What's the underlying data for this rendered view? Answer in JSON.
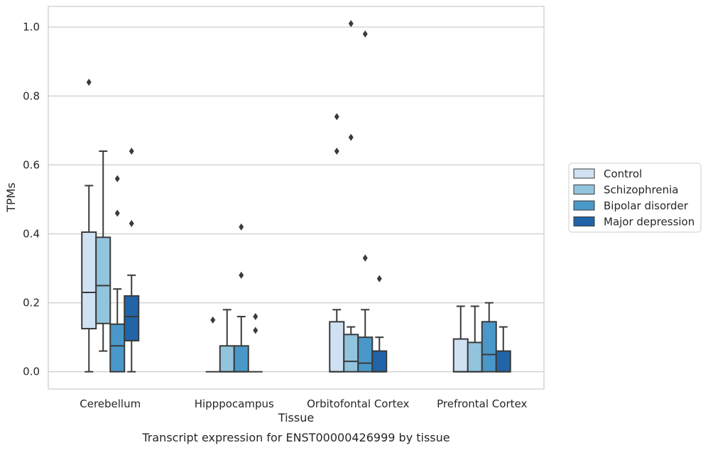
{
  "chart_data": {
    "type": "box",
    "title": "",
    "xlabel": "Tissue",
    "ylabel": "TPMs",
    "caption": "Transcript expression for ENST00000426999 by tissue",
    "ylim": [
      -0.05,
      1.06
    ],
    "yticks": [
      0.0,
      0.2,
      0.4,
      0.6,
      0.8,
      1.0
    ],
    "ytick_labels": [
      "0.0",
      "0.2",
      "0.4",
      "0.6",
      "0.8",
      "1.0"
    ],
    "grid": true,
    "legend_position": "right",
    "categories": [
      "Cerebellum",
      "Hipppocampus",
      "Orbitofontal Cortex",
      "Prefrontal Cortex"
    ],
    "series": [
      {
        "name": "Control",
        "color": "#cfe1f2",
        "boxes": [
          {
            "whislo": 0.0,
            "q1": 0.125,
            "med": 0.23,
            "q3": 0.405,
            "whishi": 0.54,
            "fliers": [
              0.84
            ]
          },
          {
            "whislo": 0.0,
            "q1": 0.0,
            "med": 0.0,
            "q3": 0.0,
            "whishi": 0.0,
            "fliers": [
              0.15
            ]
          },
          {
            "whislo": 0.0,
            "q1": 0.0,
            "med": 0.0,
            "q3": 0.145,
            "whishi": 0.18,
            "fliers": [
              0.64,
              0.74
            ]
          },
          {
            "whislo": 0.0,
            "q1": 0.0,
            "med": 0.0,
            "q3": 0.095,
            "whishi": 0.19,
            "fliers": []
          }
        ]
      },
      {
        "name": "Schizophrenia",
        "color": "#93c4de",
        "boxes": [
          {
            "whislo": 0.06,
            "q1": 0.14,
            "med": 0.25,
            "q3": 0.39,
            "whishi": 0.64,
            "fliers": []
          },
          {
            "whislo": 0.0,
            "q1": 0.0,
            "med": 0.0,
            "q3": 0.075,
            "whishi": 0.18,
            "fliers": []
          },
          {
            "whislo": 0.0,
            "q1": 0.0,
            "med": 0.03,
            "q3": 0.108,
            "whishi": 0.13,
            "fliers": [
              0.68,
              1.01
            ]
          },
          {
            "whislo": 0.0,
            "q1": 0.0,
            "med": 0.0,
            "q3": 0.085,
            "whishi": 0.19,
            "fliers": []
          }
        ]
      },
      {
        "name": "Bipolar disorder",
        "color": "#4a98c9",
        "boxes": [
          {
            "whislo": 0.0,
            "q1": 0.0,
            "med": 0.075,
            "q3": 0.138,
            "whishi": 0.24,
            "fliers": [
              0.46,
              0.56
            ]
          },
          {
            "whislo": 0.0,
            "q1": 0.0,
            "med": 0.0,
            "q3": 0.075,
            "whishi": 0.16,
            "fliers": [
              0.28,
              0.42
            ]
          },
          {
            "whislo": 0.0,
            "q1": 0.0,
            "med": 0.025,
            "q3": 0.1,
            "whishi": 0.18,
            "fliers": [
              0.33,
              0.98
            ]
          },
          {
            "whislo": 0.0,
            "q1": 0.0,
            "med": 0.05,
            "q3": 0.145,
            "whishi": 0.2,
            "fliers": []
          }
        ]
      },
      {
        "name": "Major depression",
        "color": "#2164a8",
        "boxes": [
          {
            "whislo": 0.0,
            "q1": 0.09,
            "med": 0.16,
            "q3": 0.22,
            "whishi": 0.28,
            "fliers": [
              0.43,
              0.64
            ]
          },
          {
            "whislo": 0.0,
            "q1": 0.0,
            "med": 0.0,
            "q3": 0.0,
            "whishi": 0.0,
            "fliers": [
              0.12,
              0.16
            ]
          },
          {
            "whislo": 0.0,
            "q1": 0.0,
            "med": 0.0,
            "q3": 0.06,
            "whishi": 0.1,
            "fliers": [
              0.27
            ]
          },
          {
            "whislo": 0.0,
            "q1": 0.0,
            "med": 0.0,
            "q3": 0.06,
            "whishi": 0.13,
            "fliers": []
          }
        ]
      }
    ]
  }
}
